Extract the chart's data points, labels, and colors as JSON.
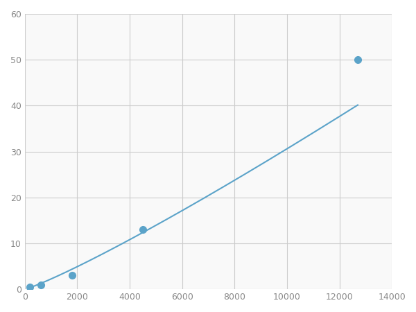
{
  "x_points": [
    200,
    600,
    1800,
    4500,
    12700
  ],
  "y_points": [
    0.5,
    1.0,
    3.0,
    13.0,
    50.0
  ],
  "line_color": "#5ba3c9",
  "marker_color": "#5ba3c9",
  "marker_size": 7,
  "line_width": 1.5,
  "xlim": [
    0,
    14000
  ],
  "ylim": [
    0,
    60
  ],
  "xticks": [
    0,
    2000,
    4000,
    6000,
    8000,
    10000,
    12000,
    14000
  ],
  "yticks": [
    0,
    10,
    20,
    30,
    40,
    50,
    60
  ],
  "grid_color": "#cccccc",
  "bg_color": "#f9f9f9",
  "fig_color": "#ffffff"
}
